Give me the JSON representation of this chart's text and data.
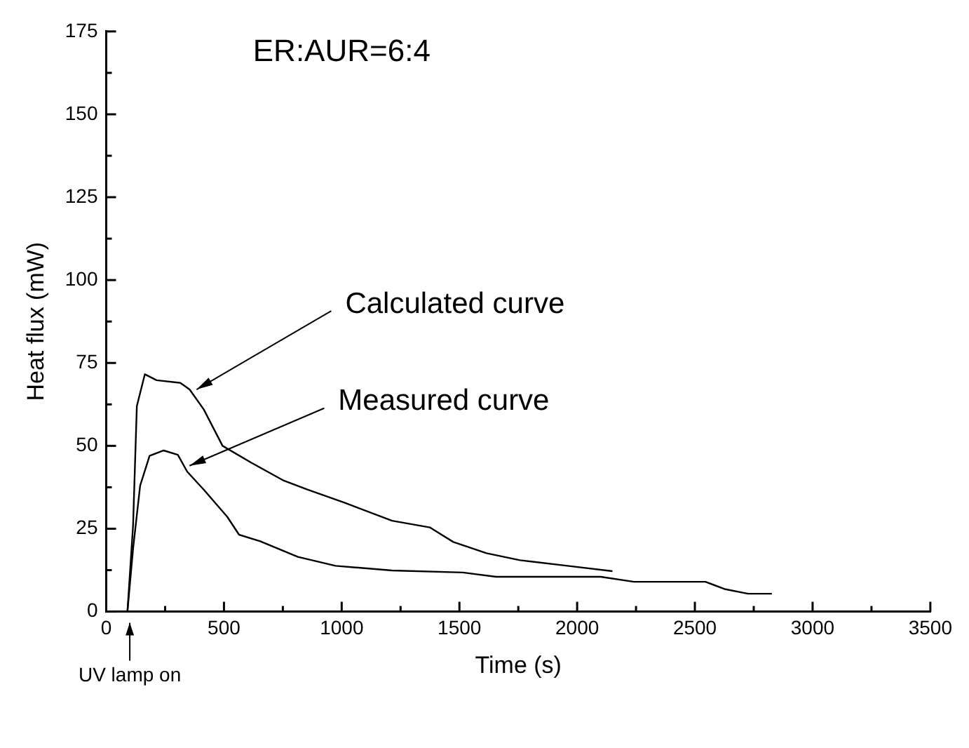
{
  "chart_data": {
    "type": "line",
    "title": "ER:AUR=6:4",
    "xlabel": "Time (s)",
    "ylabel": "Heat flux (mW)",
    "xlim": [
      0,
      3500
    ],
    "ylim": [
      0,
      175
    ],
    "xticks": [
      0,
      {
        "value": 250,
        "label": null
      },
      500,
      {
        "value": 750,
        "label": null
      },
      1000,
      {
        "value": 1250,
        "label": null
      },
      1500,
      {
        "value": 1750,
        "label": null
      },
      2000,
      {
        "value": 2250,
        "label": null
      },
      2500,
      {
        "value": 2750,
        "label": null
      },
      3000,
      {
        "value": 3250,
        "label": null
      },
      3500
    ],
    "yticks": [
      0,
      {
        "value": 12.5,
        "label": null
      },
      25,
      {
        "value": 37.5,
        "label": null
      },
      50,
      {
        "value": 62.5,
        "label": null
      },
      75,
      {
        "value": 87.5,
        "label": null
      },
      100,
      {
        "value": 112.5,
        "label": null
      },
      125,
      {
        "value": 137.5,
        "label": null
      },
      150,
      {
        "value": 162.5,
        "label": null
      },
      175
    ],
    "grid": false,
    "legend": false,
    "marker": "none",
    "line_style": "solid",
    "series": [
      {
        "color": "#000000",
        "x": [
          0,
          90,
          114,
          130,
          164,
          214,
          314,
          354,
          414,
          494,
          614,
          754,
          854,
          1014,
          1214,
          1374,
          1474,
          1615,
          1757,
          1959,
          2150
        ],
        "values": [
          0,
          0,
          26,
          62,
          71.6,
          69.8,
          69,
          67,
          61,
          50,
          45,
          39.5,
          36.8,
          32.8,
          27.4,
          25.4,
          21,
          17.6,
          15.5,
          13.8,
          12.2
        ]
      },
      {
        "color": "#000000",
        "x": [
          0,
          90,
          114,
          144,
          184,
          244,
          304,
          344,
          414,
          514,
          564,
          654,
          814,
          974,
          1214,
          1514,
          1656,
          2100,
          2241,
          2545,
          2626,
          2726,
          2827
        ],
        "values": [
          0,
          0,
          19,
          38,
          47,
          48.6,
          47.3,
          42.2,
          36.8,
          28.6,
          23.2,
          21.2,
          16.5,
          13.8,
          12.4,
          11.8,
          10.5,
          10.5,
          9,
          9,
          6.8,
          5.4,
          5.4
        ]
      }
    ],
    "annotations": [
      {
        "text": "Calculated curve",
        "x": 360,
        "y": 67
      },
      {
        "text": "Measured curve",
        "x": 330,
        "y": 44
      },
      {
        "text": "UV lamp on",
        "x": 100,
        "y": 0
      }
    ]
  }
}
